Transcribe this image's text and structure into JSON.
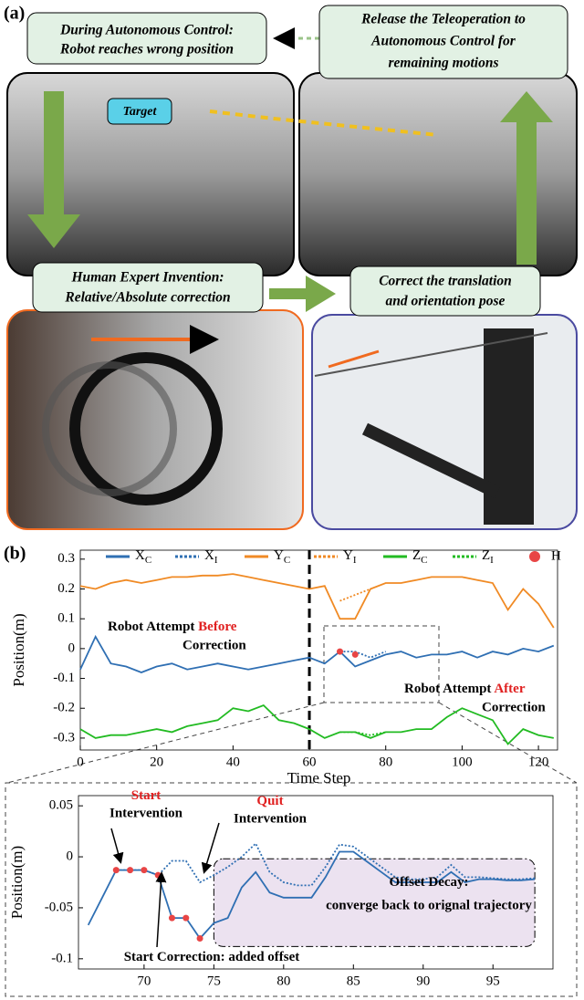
{
  "panel_a": {
    "label": "(a)",
    "boxes": [
      {
        "line1": "During Autonomous Control:",
        "line2": "Robot reaches wrong position"
      },
      {
        "line1": "Release the Teleoperation to",
        "line2": "Autonomous Control for",
        "line3": "remaining motions"
      },
      {
        "line1": "Human Expert Invention:",
        "line2": "Relative/Absolute correction"
      },
      {
        "line1": "Correct the translation",
        "line2": "and orientation pose"
      }
    ],
    "target": "Target"
  },
  "panel_b": {
    "label": "(b)"
  },
  "chart_data": [
    {
      "type": "line",
      "xlabel": "Time Step",
      "ylabel": "Position(m)",
      "x": [
        0,
        4,
        8,
        12,
        16,
        20,
        24,
        28,
        32,
        36,
        40,
        44,
        48,
        52,
        56,
        60,
        64,
        68,
        72,
        76,
        80,
        84,
        88,
        92,
        96,
        100,
        104,
        108,
        112,
        116,
        120,
        124
      ],
      "xlim": [
        0,
        125
      ],
      "xticks": [
        0,
        20,
        40,
        60,
        80,
        100,
        120
      ],
      "ylim": [
        -0.34,
        0.33
      ],
      "yticks": [
        0.3,
        0.2,
        0.1,
        0,
        -0.1,
        -0.2,
        -0.3
      ],
      "vline": 60,
      "legend": "top",
      "series": [
        {
          "name": "XC",
          "color": "#2f6fb3",
          "dash": false,
          "values": [
            -0.07,
            0.04,
            -0.05,
            -0.06,
            -0.08,
            -0.06,
            -0.05,
            -0.07,
            -0.06,
            -0.05,
            -0.06,
            -0.07,
            -0.06,
            -0.05,
            -0.04,
            -0.03,
            -0.05,
            -0.01,
            -0.06,
            -0.04,
            -0.02,
            -0.01,
            -0.03,
            -0.02,
            -0.02,
            -0.01,
            -0.03,
            -0.01,
            -0.02,
            0.0,
            -0.01,
            0.01
          ]
        },
        {
          "name": "XI",
          "color": "#2f6fb3",
          "dash": true,
          "values": [
            null,
            null,
            null,
            null,
            null,
            null,
            null,
            null,
            null,
            null,
            null,
            null,
            null,
            null,
            null,
            null,
            null,
            -0.01,
            -0.01,
            -0.03,
            -0.01,
            null,
            null,
            null,
            null,
            null,
            null,
            null,
            null,
            null,
            null,
            null
          ]
        },
        {
          "name": "YC",
          "color": "#f08a24",
          "dash": false,
          "values": [
            0.21,
            0.2,
            0.22,
            0.23,
            0.22,
            0.23,
            0.24,
            0.24,
            0.245,
            0.245,
            0.25,
            0.24,
            0.23,
            0.22,
            0.21,
            0.2,
            0.21,
            0.1,
            0.1,
            0.2,
            0.22,
            0.22,
            0.23,
            0.24,
            0.24,
            0.24,
            0.23,
            0.22,
            0.13,
            0.2,
            0.15,
            0.07
          ]
        },
        {
          "name": "YI",
          "color": "#f08a24",
          "dash": true,
          "values": [
            null,
            null,
            null,
            null,
            null,
            null,
            null,
            null,
            null,
            null,
            null,
            null,
            null,
            null,
            null,
            null,
            null,
            0.16,
            0.18,
            0.2,
            null,
            null,
            null,
            null,
            null,
            null,
            null,
            null,
            null,
            null,
            null,
            null
          ]
        },
        {
          "name": "ZC",
          "color": "#22bb22",
          "dash": false,
          "values": [
            -0.27,
            -0.3,
            -0.29,
            -0.29,
            -0.28,
            -0.27,
            -0.28,
            -0.26,
            -0.25,
            -0.24,
            -0.2,
            -0.21,
            -0.19,
            -0.24,
            -0.25,
            -0.27,
            -0.3,
            -0.28,
            -0.28,
            -0.3,
            -0.28,
            -0.28,
            -0.27,
            -0.27,
            -0.23,
            -0.2,
            -0.22,
            -0.24,
            -0.32,
            -0.27,
            -0.29,
            -0.3
          ]
        },
        {
          "name": "ZI",
          "color": "#22bb22",
          "dash": true,
          "values": [
            null,
            null,
            null,
            null,
            null,
            null,
            null,
            null,
            null,
            null,
            null,
            null,
            null,
            null,
            null,
            null,
            null,
            -0.28,
            -0.28,
            -0.29,
            -0.28,
            null,
            null,
            null,
            null,
            null,
            null,
            null,
            null,
            null,
            null,
            null
          ]
        },
        {
          "name": "H",
          "color": "#e84545",
          "marker": true,
          "values": [
            null,
            null,
            null,
            null,
            null,
            null,
            null,
            null,
            null,
            null,
            null,
            null,
            null,
            null,
            null,
            null,
            null,
            -0.01,
            -0.02,
            null,
            null,
            null,
            null,
            null,
            null,
            null,
            null,
            null,
            null,
            null,
            null,
            null
          ]
        }
      ],
      "annotations": [
        {
          "text": "Robot Attempt",
          "emph": "Before",
          "line2": "Correction"
        },
        {
          "text": "Robot Attempt",
          "emph": "After",
          "line2": "Correction"
        }
      ]
    },
    {
      "type": "line",
      "ylabel": "Position(m)",
      "x": [
        66,
        67,
        68,
        69,
        70,
        71,
        72,
        73,
        74,
        75,
        76,
        77,
        78,
        79,
        80,
        81,
        82,
        83,
        84,
        85,
        86,
        87,
        88,
        89,
        90,
        91,
        92,
        93,
        94,
        95,
        96,
        97,
        98
      ],
      "xlim": [
        65.3,
        99.3
      ],
      "xticks": [
        70,
        75,
        80,
        85,
        90,
        95
      ],
      "ylim": [
        -0.11,
        0.06
      ],
      "yticks": [
        0.05,
        0,
        -0.05,
        -0.1
      ],
      "highlight": {
        "xlim": [
          75,
          98
        ],
        "ylim": [
          -0.088,
          -0.002
        ]
      },
      "series": [
        {
          "name": "XC",
          "color": "#2f6fb3",
          "dash": false,
          "values": [
            -0.067,
            -0.04,
            -0.013,
            -0.013,
            -0.013,
            -0.018,
            -0.06,
            -0.06,
            -0.08,
            -0.065,
            -0.06,
            -0.03,
            -0.015,
            -0.035,
            -0.04,
            -0.04,
            -0.04,
            -0.02,
            0.005,
            0.005,
            -0.005,
            -0.015,
            -0.025,
            -0.025,
            -0.025,
            -0.025,
            -0.015,
            -0.025,
            -0.022,
            -0.022,
            -0.023,
            -0.023,
            -0.022
          ]
        },
        {
          "name": "XI",
          "color": "#2f6fb3",
          "dash": true,
          "values": [
            null,
            null,
            -0.013,
            -0.013,
            -0.013,
            -0.018,
            -0.004,
            -0.004,
            -0.025,
            -0.018,
            -0.01,
            0.0,
            0.013,
            -0.015,
            -0.025,
            -0.028,
            -0.028,
            -0.01,
            0.012,
            0.01,
            0.0,
            -0.01,
            -0.02,
            -0.022,
            -0.022,
            -0.02,
            -0.008,
            -0.02,
            -0.02,
            -0.021,
            -0.022,
            -0.022,
            -0.021
          ]
        },
        {
          "name": "H",
          "color": "#e84545",
          "marker": true,
          "values": [
            null,
            null,
            -0.013,
            -0.013,
            -0.013,
            -0.018,
            -0.06,
            -0.06,
            -0.08,
            null,
            null,
            null,
            null,
            null,
            null,
            null,
            null,
            null,
            null,
            null,
            null,
            null,
            null,
            null,
            null,
            null,
            null,
            null,
            null,
            null,
            null,
            null,
            null
          ]
        }
      ],
      "annotations": [
        {
          "emph": "Start",
          "line2": "Intervention"
        },
        {
          "emph": "Quit",
          "line2": "Intervention"
        },
        {
          "text": "Offset Decay:",
          "line2": "converge back to orignal trajectory"
        },
        {
          "text": "Start Correction: added offset"
        }
      ]
    }
  ]
}
